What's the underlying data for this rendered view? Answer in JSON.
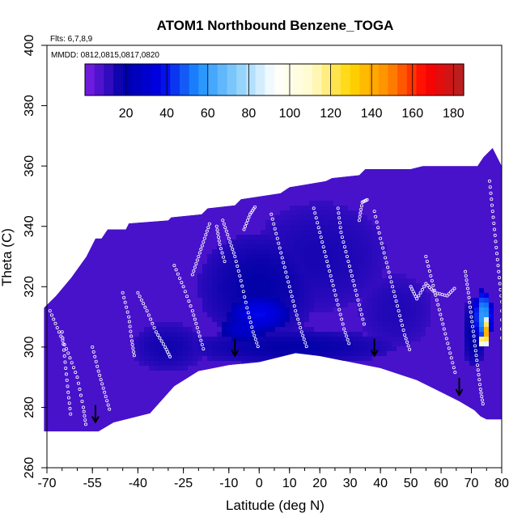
{
  "chart_data": {
    "type": "heatmap",
    "title": "ATOM1 Northbound Benzene_TOGA",
    "subtitle_flights": "Flts: 6,7,8,9",
    "subtitle_dates": "MMDD: 0812,0815,0817,0820",
    "xlabel": "Latitude (deg N)",
    "ylabel": "Theta (C)",
    "xlim": [
      -70,
      80
    ],
    "ylim": [
      260,
      400
    ],
    "x_ticks": [
      -70,
      -55,
      -40,
      -25,
      -10,
      0,
      10,
      20,
      30,
      40,
      50,
      60,
      70,
      80
    ],
    "y_ticks": [
      260,
      280,
      300,
      320,
      340,
      360,
      380,
      400
    ],
    "colorbar": {
      "range": [
        0,
        185
      ],
      "ticks": [
        20,
        40,
        60,
        80,
        100,
        120,
        140,
        160,
        180
      ],
      "colors": [
        "#7f1fe6",
        "#0000a6",
        "#0000e6",
        "#1e90ff",
        "#87cefa",
        "#ffffff",
        "#fffacd",
        "#ffd700",
        "#ff8c00",
        "#ff0000",
        "#b22222"
      ]
    },
    "field": {
      "background_value": 8,
      "top_boundary": [
        [
          -71,
          313
        ],
        [
          -67,
          317
        ],
        [
          -62,
          323
        ],
        [
          -57,
          330
        ],
        [
          -54,
          336
        ],
        [
          -52,
          336
        ],
        [
          -50,
          339
        ],
        [
          -44,
          339
        ],
        [
          -43,
          341
        ],
        [
          -30,
          342
        ],
        [
          -29,
          343
        ],
        [
          -19,
          344
        ],
        [
          -17,
          346
        ],
        [
          -8,
          347
        ],
        [
          -6,
          349
        ],
        [
          7,
          351
        ],
        [
          10,
          353
        ],
        [
          22,
          355
        ],
        [
          24,
          356
        ],
        [
          33,
          357
        ],
        [
          35,
          359
        ],
        [
          50,
          359
        ],
        [
          54,
          360
        ],
        [
          72,
          360
        ],
        [
          74,
          363
        ],
        [
          77,
          366
        ],
        [
          80,
          360
        ]
      ],
      "bottom_boundary": [
        [
          80,
          276
        ],
        [
          75,
          276
        ],
        [
          73,
          277
        ],
        [
          71,
          279
        ],
        [
          66,
          282
        ],
        [
          60,
          285
        ],
        [
          52,
          289
        ],
        [
          40,
          293
        ],
        [
          30,
          295
        ],
        [
          20,
          297
        ],
        [
          12,
          298
        ],
        [
          0,
          295
        ],
        [
          -10,
          294
        ],
        [
          -20,
          292
        ],
        [
          -28,
          287
        ],
        [
          -36,
          278
        ],
        [
          -44,
          276
        ],
        [
          -48,
          275
        ],
        [
          -53,
          272
        ],
        [
          -60,
          272
        ],
        [
          -71,
          272
        ]
      ],
      "features": [
        {
          "lat": 0,
          "theta": 311,
          "value": 38,
          "rx": 10,
          "ry": 6
        },
        {
          "lat": -5,
          "theta": 306,
          "value": 30,
          "rx": 8,
          "ry": 4
        },
        {
          "lat": 0,
          "theta": 320,
          "value": 18,
          "rx": 20,
          "ry": 18
        },
        {
          "lat": 20,
          "theta": 330,
          "value": 15,
          "rx": 22,
          "ry": 18
        },
        {
          "lat": 10,
          "theta": 300,
          "value": 18,
          "rx": 35,
          "ry": 6
        },
        {
          "lat": -30,
          "theta": 300,
          "value": 16,
          "rx": 12,
          "ry": 8
        },
        {
          "lat": 45,
          "theta": 312,
          "value": 14,
          "rx": 12,
          "ry": 12
        },
        {
          "lat": 74,
          "theta": 310,
          "value": 60,
          "rx": 3,
          "ry": 9
        },
        {
          "lat": 75,
          "theta": 305,
          "value": 140,
          "rx": 1.5,
          "ry": 5
        },
        {
          "lat": 74,
          "theta": 302,
          "value": 175,
          "rx": 1,
          "ry": 2
        },
        {
          "lat": 71,
          "theta": 305,
          "value": 20,
          "rx": 4,
          "ry": 12
        }
      ]
    },
    "arrows": [
      [
        -54,
        277
      ],
      [
        -8,
        299
      ],
      [
        38,
        299
      ],
      [
        66,
        286
      ]
    ],
    "sample_tracks": [
      [
        [
          -69,
          312
        ],
        [
          -66,
          305
        ],
        [
          -63,
          298
        ],
        [
          -60,
          290
        ],
        [
          -58,
          280
        ],
        [
          -57,
          273
        ]
      ],
      [
        [
          -55,
          300
        ],
        [
          -53,
          292
        ],
        [
          -51,
          285
        ],
        [
          -49,
          278
        ]
      ],
      [
        [
          -40,
          318
        ],
        [
          -37,
          312
        ],
        [
          -34,
          305
        ],
        [
          -31,
          300
        ],
        [
          -29,
          296
        ]
      ],
      [
        [
          -28,
          327
        ],
        [
          -25,
          320
        ],
        [
          -22,
          312
        ],
        [
          -20,
          305
        ],
        [
          -18,
          298
        ]
      ],
      [
        [
          -22,
          324
        ],
        [
          -20,
          330
        ],
        [
          -18,
          336
        ],
        [
          -16,
          342
        ]
      ],
      [
        [
          -12,
          342
        ],
        [
          -10,
          336
        ],
        [
          -8,
          330
        ],
        [
          -6,
          322
        ],
        [
          -4,
          313
        ],
        [
          -2,
          305
        ],
        [
          0,
          299
        ]
      ],
      [
        [
          -5,
          339
        ],
        [
          -3,
          344
        ],
        [
          -1,
          347
        ]
      ],
      [
        [
          4,
          344
        ],
        [
          6,
          336
        ],
        [
          8,
          328
        ],
        [
          10,
          320
        ],
        [
          12,
          312
        ],
        [
          14,
          305
        ],
        [
          16,
          299
        ]
      ],
      [
        [
          18,
          346
        ],
        [
          20,
          338
        ],
        [
          22,
          330
        ],
        [
          24,
          322
        ],
        [
          26,
          314
        ],
        [
          28,
          306
        ],
        [
          30,
          300
        ]
      ],
      [
        [
          26,
          346
        ],
        [
          27,
          338
        ],
        [
          29,
          330
        ],
        [
          31,
          322
        ],
        [
          33,
          314
        ],
        [
          35,
          306
        ]
      ],
      [
        [
          38,
          345
        ],
        [
          40,
          336
        ],
        [
          42,
          328
        ],
        [
          44,
          320
        ],
        [
          46,
          312
        ],
        [
          48,
          304
        ],
        [
          50,
          298
        ]
      ],
      [
        [
          50,
          320
        ],
        [
          52,
          316
        ],
        [
          55,
          321
        ],
        [
          58,
          318
        ],
        [
          62,
          317
        ],
        [
          65,
          320
        ]
      ],
      [
        [
          55,
          330
        ],
        [
          57,
          322
        ],
        [
          59,
          314
        ],
        [
          61,
          306
        ],
        [
          63,
          298
        ],
        [
          65,
          290
        ]
      ],
      [
        [
          68,
          325
        ],
        [
          69,
          318
        ],
        [
          70,
          310
        ],
        [
          71,
          302
        ],
        [
          72,
          294
        ],
        [
          73,
          286
        ],
        [
          74,
          280
        ]
      ],
      [
        [
          76,
          355
        ],
        [
          77,
          345
        ],
        [
          78,
          335
        ],
        [
          79,
          325
        ],
        [
          80,
          315
        ],
        [
          80,
          300
        ]
      ],
      [
        [
          -65,
          305
        ],
        [
          -64,
          295
        ],
        [
          -63,
          285
        ],
        [
          -62,
          276
        ]
      ],
      [
        [
          -45,
          318
        ],
        [
          -43,
          310
        ],
        [
          -42,
          302
        ],
        [
          -41,
          296
        ]
      ],
      [
        [
          -14,
          340
        ],
        [
          -13,
          334
        ],
        [
          -11,
          327
        ]
      ],
      [
        [
          33,
          342
        ],
        [
          34,
          348
        ],
        [
          36,
          349
        ]
      ]
    ]
  }
}
